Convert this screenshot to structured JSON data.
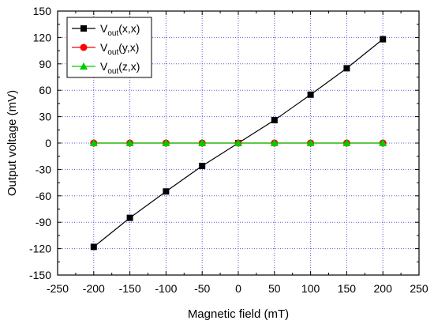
{
  "chart_data": {
    "type": "line",
    "title": "",
    "xlabel": "Magnetic field (mT)",
    "ylabel": "Output voltage (mV)",
    "xlim": [
      -250,
      250
    ],
    "ylim": [
      -150,
      150
    ],
    "x_ticks": [
      -250,
      -200,
      -150,
      -100,
      -50,
      0,
      50,
      100,
      150,
      200,
      250
    ],
    "y_ticks": [
      -150,
      -120,
      -90,
      -60,
      -30,
      0,
      30,
      60,
      90,
      120,
      150
    ],
    "grid": true,
    "legend_position": "top-left",
    "x": [
      -200,
      -150,
      -100,
      -50,
      0,
      50,
      100,
      150,
      200
    ],
    "series": [
      {
        "name": "V_out(x,x)",
        "label_main": "V",
        "label_sub": "out",
        "label_suffix": "(x,x)",
        "color": "#000000",
        "marker": "square",
        "values": [
          -118,
          -85,
          -55,
          -26,
          0,
          26,
          55,
          85,
          118
        ]
      },
      {
        "name": "V_out(y,x)",
        "label_main": "V",
        "label_sub": "out",
        "label_suffix": "(y,x)",
        "color": "#ff0000",
        "marker": "circle",
        "values": [
          0,
          0,
          0,
          0,
          0,
          0,
          0,
          0,
          0
        ]
      },
      {
        "name": "V_out(z,x)",
        "label_main": "V",
        "label_sub": "out",
        "label_suffix": "(z,x)",
        "color": "#00cc00",
        "marker": "triangle",
        "values": [
          0,
          0,
          0,
          0,
          0,
          0,
          0,
          0,
          0
        ]
      }
    ]
  }
}
